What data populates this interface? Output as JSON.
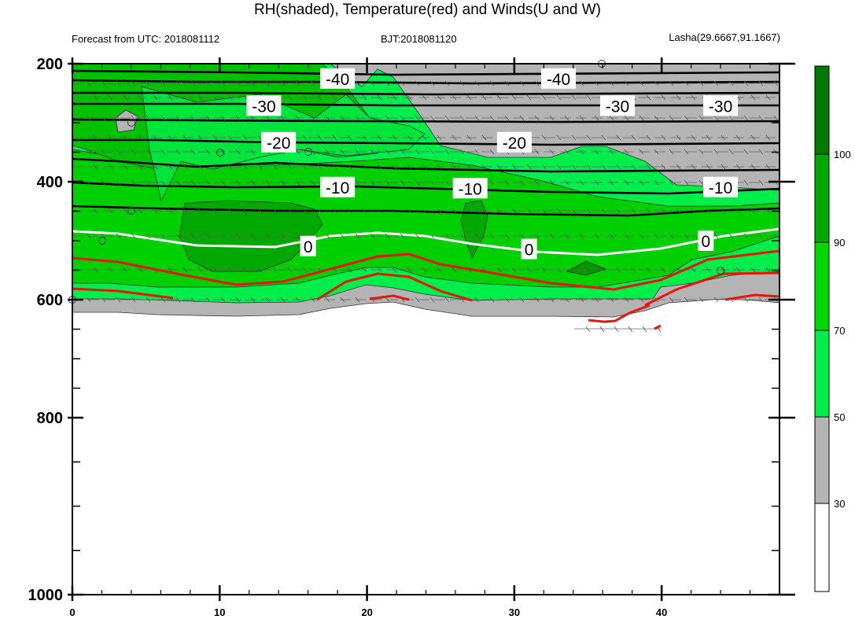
{
  "chart_data": {
    "type": "contour",
    "title": "RH(shaded), Temperature(red) and Winds(U and W)",
    "subtitle_left": "Forecast from UTC: 2018081112",
    "subtitle_center": "BJT:2018081120",
    "subtitle_right": "Lasha(29.6667,91.1667)",
    "x_ticks": [
      "0",
      "10",
      "20",
      "30",
      "40"
    ],
    "x_tick_values": [
      0,
      10,
      20,
      30,
      40
    ],
    "xlim": [
      0,
      48
    ],
    "y_ticks": [
      "200",
      "400",
      "600",
      "800",
      "1000"
    ],
    "y_tick_values": [
      200,
      400,
      600,
      800,
      1000
    ],
    "ylim": [
      200,
      1000
    ],
    "colorbar": {
      "labels": [
        "30",
        "50",
        "70",
        "90",
        "100"
      ],
      "colors": [
        "#ffffff",
        "#b4b4b4",
        "#00ee4a",
        "#00d000",
        "#00a800",
        "#008000",
        "#00e000",
        "#007a00"
      ]
    },
    "temperature_labels": [
      {
        "text": "-40",
        "x": 18,
        "p": 225
      },
      {
        "text": "-40",
        "x": 33,
        "p": 225
      },
      {
        "text": "-30",
        "x": 13,
        "p": 271
      },
      {
        "text": "-30",
        "x": 37,
        "p": 271
      },
      {
        "text": "-30",
        "x": 44,
        "p": 271
      },
      {
        "text": "-20",
        "x": 14,
        "p": 333
      },
      {
        "text": "-20",
        "x": 30,
        "p": 333
      },
      {
        "text": "-10",
        "x": 18,
        "p": 409
      },
      {
        "text": "-10",
        "x": 27,
        "p": 411
      },
      {
        "text": "-10",
        "x": 44,
        "p": 409
      },
      {
        "text": "0",
        "x": 16,
        "p": 509
      },
      {
        "text": "0",
        "x": 31,
        "p": 514
      },
      {
        "text": "0",
        "x": 43,
        "p": 500
      }
    ]
  }
}
